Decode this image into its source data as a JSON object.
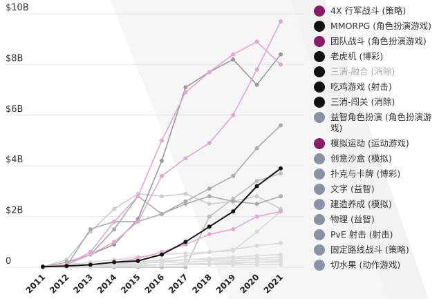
{
  "chart_data": {
    "type": "line",
    "x": [
      2011,
      2012,
      2013,
      2014,
      2015,
      2016,
      2017,
      2018,
      2019,
      2020,
      2021
    ],
    "y_ticks": [
      "$10B",
      "$8B",
      "$6B",
      "$4B",
      "$2B",
      "0"
    ],
    "ylim": [
      0,
      10
    ],
    "grid": true,
    "legend_position": "right",
    "series": [
      {
        "name": "4X 行军战斗 (策略)",
        "color": "#8b1a6b",
        "line_color": "#e0a8cf",
        "values": [
          0.02,
          0.1,
          0.5,
          1.0,
          1.8,
          3.6,
          4.3,
          4.9,
          6.0,
          7.8,
          9.7
        ]
      },
      {
        "name": "MMORPG (角色扮演游戏)",
        "color": "#111111",
        "line_color": "#111111",
        "values": [
          0.02,
          0.05,
          0.1,
          0.2,
          0.25,
          0.5,
          1.0,
          1.6,
          2.2,
          3.2,
          3.9
        ]
      },
      {
        "name": "团队战斗 (角色扮演游戏)",
        "color": "#8b1a6b",
        "line_color": "#e0a8cf",
        "values": [
          0.02,
          0.1,
          0.6,
          1.8,
          2.8,
          5.0,
          6.9,
          7.7,
          8.4,
          8.9,
          8.0
        ]
      },
      {
        "name": "老虎机 (博彩)",
        "color": "#111111",
        "line_color": "#999999",
        "values": [
          0.02,
          0.1,
          0.5,
          0.9,
          1.9,
          4.2,
          7.1,
          7.7,
          8.2,
          7.2,
          8.4
        ]
      },
      {
        "name": "三消-融合 (消除)",
        "color": "#111111",
        "line_color": "#aaaaaa",
        "values": [
          0.02,
          0.05,
          1.5,
          1.8,
          1.8,
          2.1,
          2.6,
          3.1,
          3.6,
          4.7,
          5.6
        ]
      },
      {
        "name": "吃鸡游戏 (射击)",
        "color": "#111111",
        "line_color": "#bbbbbb",
        "values": [
          0.0,
          0.0,
          0.0,
          0.0,
          0.0,
          0.0,
          0.0,
          2.0,
          2.7,
          3.4,
          3.7
        ]
      },
      {
        "name": "三消-闯关 (消除)",
        "color": "#111111",
        "line_color": "#aaaaaa",
        "values": [
          0.02,
          0.2,
          0.5,
          1.5,
          2.8,
          2.1,
          2.5,
          2.8,
          2.6,
          2.5,
          2.8
        ]
      },
      {
        "name": "益智角色扮演 (角色扮演游戏)",
        "color": "#8a93a3",
        "line_color": "#cccccc",
        "values": [
          0.02,
          0.3,
          1.4,
          2.3,
          2.9,
          2.8,
          2.9,
          2.5,
          2.6,
          2.8,
          2.3
        ]
      },
      {
        "name": "模拟运动 (运动游戏)",
        "color": "#8b1a6b",
        "line_color": "#e0a8cf",
        "values": [
          0.02,
          0.05,
          0.1,
          0.2,
          0.35,
          0.6,
          0.9,
          1.3,
          1.5,
          2.0,
          2.2
        ]
      },
      {
        "name": "创意沙盒 (模拟)",
        "color": "#8a93a3",
        "line_color": "#d8d8d8",
        "values": [
          0.0,
          0.0,
          0.05,
          0.1,
          0.2,
          0.3,
          0.45,
          0.6,
          0.7,
          0.85,
          0.95
        ]
      },
      {
        "name": "扑克与卡牌 (博彩)",
        "color": "#8a93a3",
        "line_color": "#d8d8d8",
        "values": [
          0.02,
          0.1,
          0.2,
          0.3,
          0.4,
          0.5,
          0.55,
          0.6,
          0.65,
          1.4,
          2.2
        ]
      },
      {
        "name": "文字 (益智)",
        "color": "#8a93a3",
        "line_color": "#dddddd",
        "values": [
          0.0,
          0.0,
          0.05,
          0.1,
          0.15,
          0.2,
          0.3,
          0.35,
          0.4,
          0.45,
          0.5
        ]
      },
      {
        "name": "建造养成 (模拟)",
        "color": "#8a93a3",
        "line_color": "#dddddd",
        "values": [
          0.0,
          0.05,
          0.1,
          0.15,
          0.2,
          0.25,
          0.3,
          0.3,
          0.35,
          0.35,
          0.4
        ]
      },
      {
        "name": "物理 (益智)",
        "color": "#8a93a3",
        "line_color": "#dddddd",
        "values": [
          0.0,
          0.05,
          0.1,
          0.1,
          0.15,
          0.2,
          0.2,
          0.25,
          0.25,
          0.3,
          0.3
        ]
      },
      {
        "name": "PvE 射击 (射击)",
        "color": "#8a93a3",
        "line_color": "#dddddd",
        "values": [
          0.0,
          0.0,
          0.05,
          0.05,
          0.1,
          0.1,
          0.15,
          0.15,
          0.2,
          0.2,
          0.25
        ]
      },
      {
        "name": "固定路线战斗 (策略)",
        "color": "#8a93a3",
        "line_color": "#dddddd",
        "values": [
          0.0,
          0.0,
          0.0,
          0.05,
          0.05,
          0.1,
          0.1,
          0.15,
          0.15,
          0.2,
          0.2
        ]
      },
      {
        "name": "切水果 (动作游戏)",
        "color": "#8a93a3",
        "line_color": "#dddddd",
        "values": [
          0.0,
          0.05,
          0.05,
          0.1,
          0.1,
          0.1,
          0.1,
          0.1,
          0.1,
          0.1,
          0.1
        ]
      }
    ]
  }
}
